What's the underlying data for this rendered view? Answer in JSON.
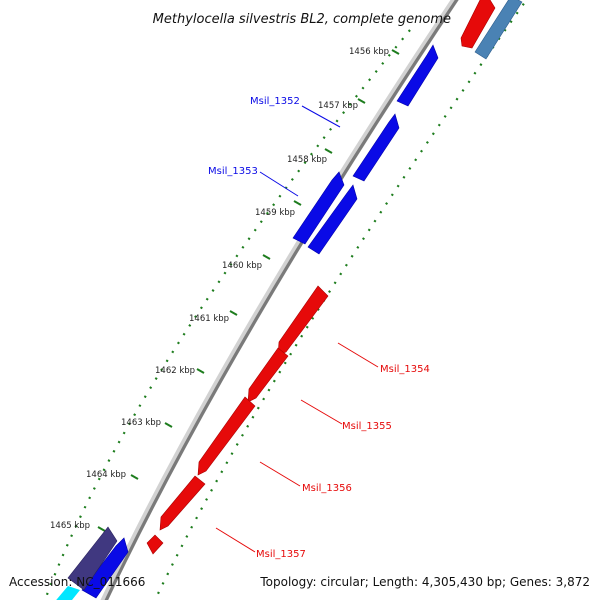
{
  "title": "Methylocella silvestris BL2, complete genome",
  "footer": {
    "accession": "Accession: NC_011666",
    "topology": "Topology: circular; Length: 4,305,430 bp; Genes: 3,872"
  },
  "ticks": [
    "1456 kbp",
    "1457 kbp",
    "1458 kbp",
    "1459 kbp",
    "1460 kbp",
    "1461 kbp",
    "1462 kbp",
    "1463 kbp",
    "1464 kbp",
    "1465 kbp"
  ],
  "genes": {
    "forward": [
      "Msil_1352",
      "Msil_1353"
    ],
    "reverse": [
      "Msil_1354",
      "Msil_1355",
      "Msil_1356",
      "Msil_1357"
    ]
  },
  "colors": {
    "forward_gene": "#0a0ae6",
    "reverse_gene": "#e60a0a",
    "backbone": "#8c8c8c",
    "tick_dots": "#1e7d1e",
    "other_gene_a": "#4a82b4",
    "other_gene_b": "#403880"
  }
}
